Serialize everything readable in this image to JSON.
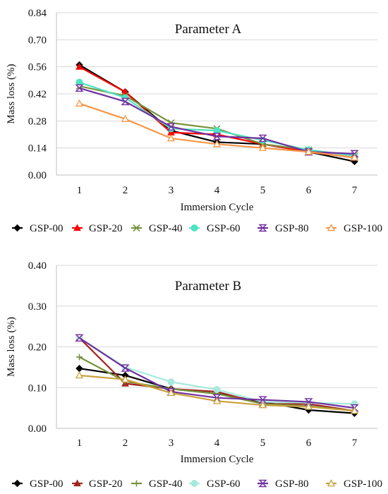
{
  "chart_data": [
    {
      "type": "line",
      "title": "Parameter A",
      "xlabel": "Immersion Cycle",
      "ylabel": "Mass loss (%)",
      "x": [
        1,
        2,
        3,
        4,
        5,
        6,
        7
      ],
      "ylim": [
        0,
        0.84
      ],
      "yticks": [
        "0.00",
        "0.14",
        "0.28",
        "0.42",
        "0.56",
        "0.70",
        "0.84"
      ],
      "grid": true,
      "legend": "bottom",
      "series": [
        {
          "name": "GSP-00",
          "color": "#000000",
          "marker": "diamond",
          "values": [
            0.57,
            0.43,
            0.23,
            0.17,
            0.16,
            0.12,
            0.07
          ]
        },
        {
          "name": "GSP-20",
          "color": "#ff0000",
          "marker": "triangle",
          "values": [
            0.56,
            0.43,
            0.22,
            0.21,
            0.16,
            0.12,
            0.09
          ]
        },
        {
          "name": "GSP-40",
          "color": "#76923c",
          "marker": "x",
          "values": [
            0.46,
            0.41,
            0.27,
            0.24,
            0.16,
            0.13,
            0.1
          ]
        },
        {
          "name": "GSP-60",
          "color": "#4fe3c1",
          "marker": "circle",
          "values": [
            0.48,
            0.4,
            0.24,
            0.23,
            0.18,
            0.13,
            0.1
          ]
        },
        {
          "name": "GSP-80",
          "color": "#7030a0",
          "marker": "hourglass",
          "values": [
            0.45,
            0.38,
            0.25,
            0.2,
            0.19,
            0.12,
            0.11
          ]
        },
        {
          "name": "GSP-100",
          "color": "#f79646",
          "marker": "triangle-open",
          "values": [
            0.37,
            0.29,
            0.19,
            0.16,
            0.14,
            0.12,
            0.09
          ]
        }
      ]
    },
    {
      "type": "line",
      "title": "Parameter B",
      "xlabel": "Immersion Cycle",
      "ylabel": "Mass loss (%)",
      "x": [
        1,
        2,
        3,
        4,
        5,
        6,
        7
      ],
      "ylim": [
        0,
        0.4
      ],
      "yticks": [
        "0.00",
        "0.10",
        "0.20",
        "0.30",
        "0.40"
      ],
      "grid": true,
      "legend": "bottom",
      "series": [
        {
          "name": "GSP-00",
          "color": "#000000",
          "marker": "diamond",
          "values": [
            0.147,
            0.13,
            0.097,
            0.085,
            0.065,
            0.045,
            0.037
          ]
        },
        {
          "name": "GSP-20",
          "color": "#a0221c",
          "marker": "triangle",
          "values": [
            0.222,
            0.11,
            0.097,
            0.09,
            0.06,
            0.06,
            0.043
          ]
        },
        {
          "name": "GSP-40",
          "color": "#76923c",
          "marker": "plus",
          "values": [
            0.175,
            0.115,
            0.097,
            0.085,
            0.06,
            0.055,
            0.043
          ]
        },
        {
          "name": "GSP-60",
          "color": "#a7e9dc",
          "marker": "circle",
          "values": [
            0.222,
            0.15,
            0.114,
            0.095,
            0.065,
            0.063,
            0.06
          ]
        },
        {
          "name": "GSP-80",
          "color": "#7030a0",
          "marker": "hourglass",
          "values": [
            0.222,
            0.148,
            0.09,
            0.075,
            0.07,
            0.065,
            0.05
          ]
        },
        {
          "name": "GSP-100",
          "color": "#c9a13c",
          "marker": "triangle-open",
          "values": [
            0.13,
            0.12,
            0.087,
            0.067,
            0.057,
            0.053,
            0.043
          ]
        }
      ]
    }
  ]
}
